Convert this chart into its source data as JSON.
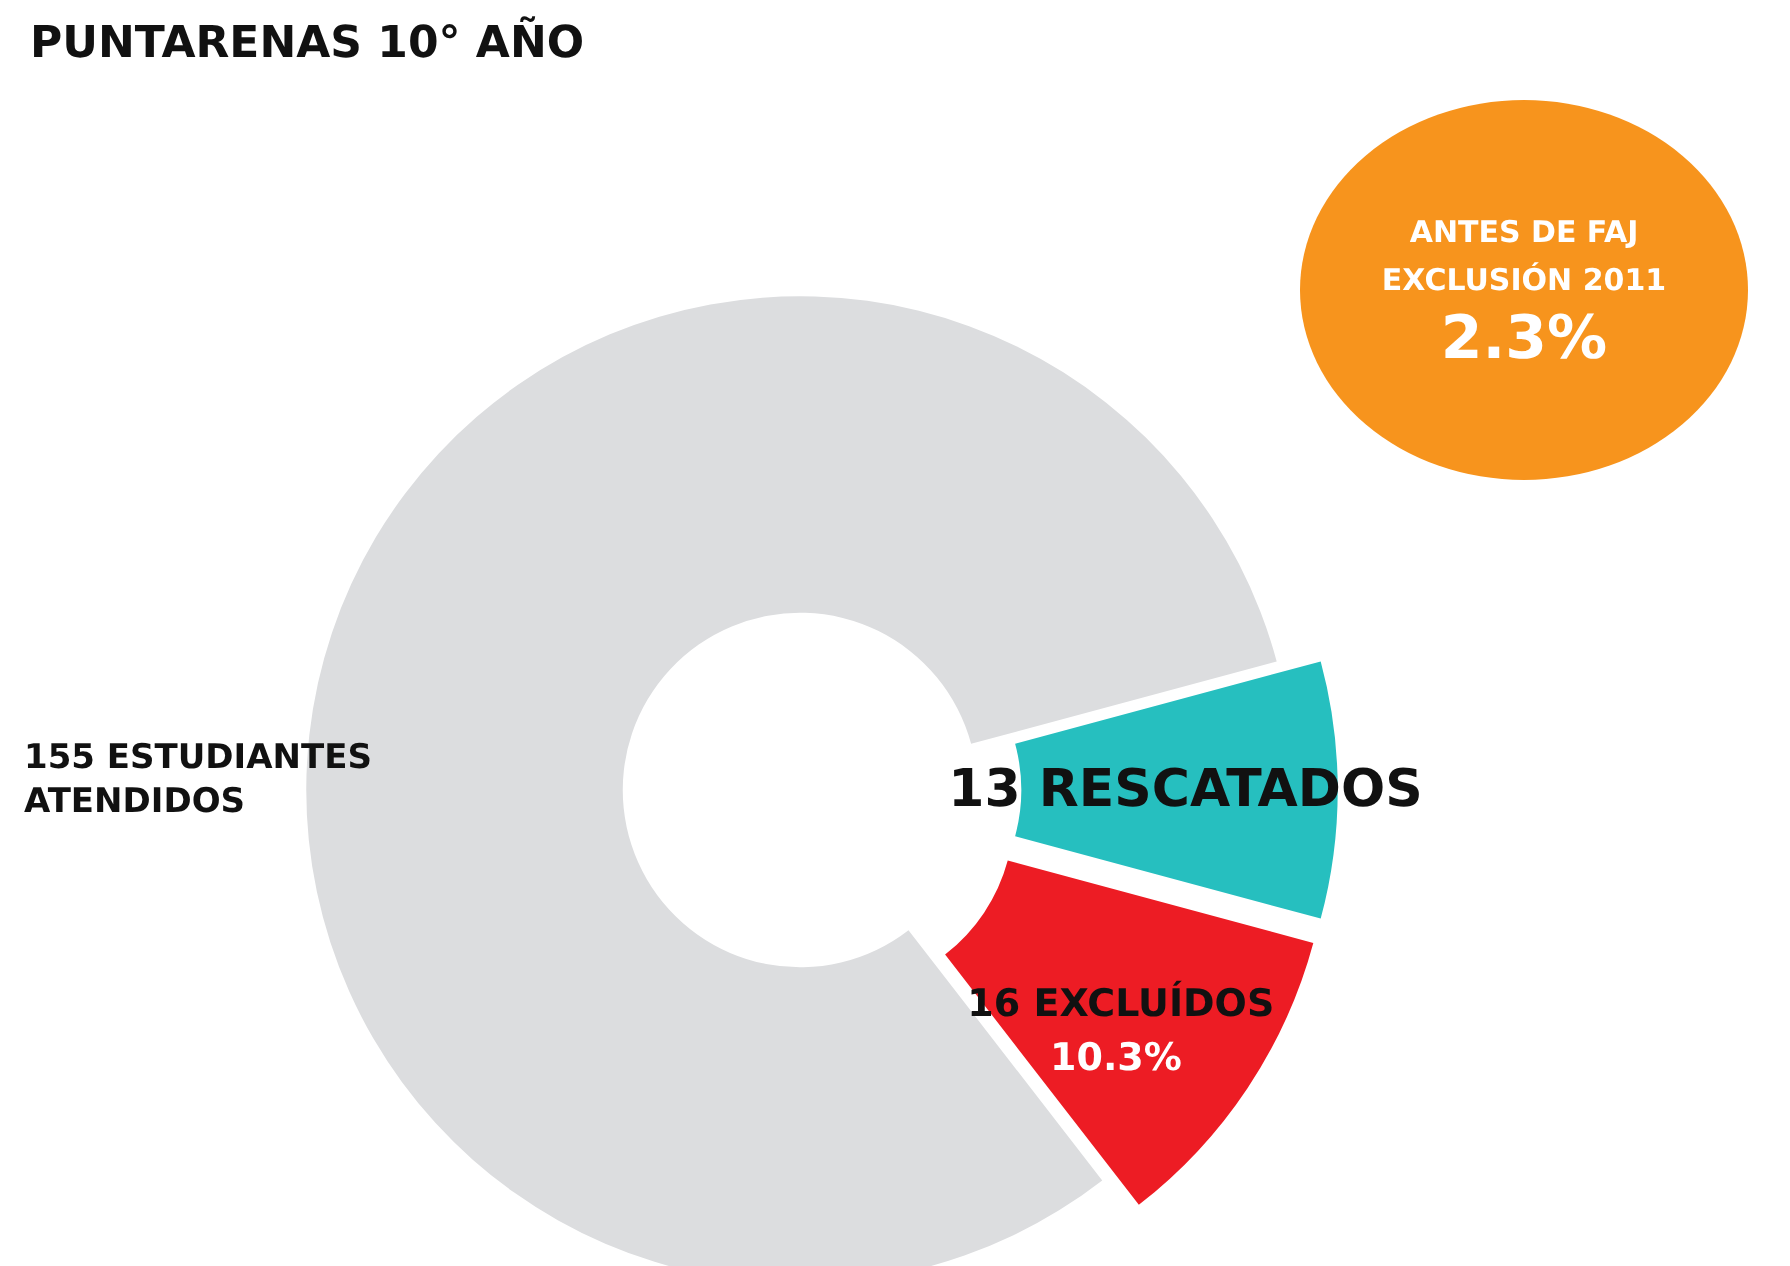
{
  "chart_data": {
    "type": "donut",
    "title": "PUNTARENAS 10° AÑO",
    "categories": [
      "13 RESCATADOS",
      "16 EXCLUÍDOS",
      null
    ],
    "values": [
      13,
      16,
      126
    ],
    "colors": [
      "#26bfbf",
      "#ed1c24",
      "#dcdddf"
    ],
    "annotations": [
      "155 ESTUDIANTES ATENDIDOS",
      "10.3%",
      "ANTES DE FAJ EXCLUSIÓN 2011",
      "2.3%"
    ],
    "legend": false
  }
}
